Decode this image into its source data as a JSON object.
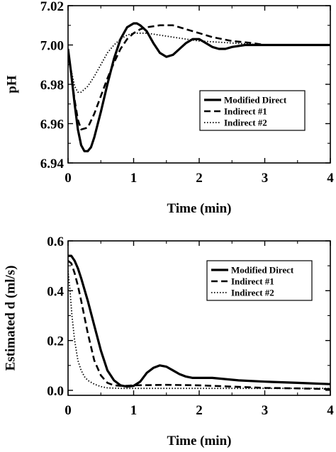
{
  "chart_data": [
    {
      "type": "line",
      "xlabel": "Time (min)",
      "ylabel": "pH",
      "xlim": [
        0,
        4
      ],
      "ylim": [
        6.94,
        7.02
      ],
      "x_ticks": [
        0,
        1,
        2,
        3,
        4
      ],
      "x_tick_labels": [
        "0",
        "1",
        "2",
        "3",
        "4"
      ],
      "y_ticks": [
        6.94,
        6.96,
        6.98,
        7.0,
        7.02
      ],
      "y_tick_labels": [
        "6.94",
        "6.96",
        "6.98",
        "7.00",
        "7.02"
      ],
      "grid": false,
      "legend_position": "center-right",
      "series": [
        {
          "name": "Modified Direct",
          "style": "solid",
          "x": [
            0,
            0.05,
            0.1,
            0.15,
            0.2,
            0.25,
            0.3,
            0.35,
            0.4,
            0.5,
            0.6,
            0.7,
            0.8,
            0.9,
            1.0,
            1.05,
            1.1,
            1.2,
            1.3,
            1.4,
            1.5,
            1.6,
            1.7,
            1.8,
            1.9,
            2.0,
            2.1,
            2.2,
            2.3,
            2.4,
            2.5,
            2.7,
            2.9,
            3.0,
            3.5,
            4.0
          ],
          "values": [
            6.998,
            6.985,
            6.97,
            6.957,
            6.949,
            6.946,
            6.946,
            6.948,
            6.953,
            6.966,
            6.98,
            6.993,
            7.003,
            7.009,
            7.011,
            7.011,
            7.01,
            7.007,
            7.001,
            6.996,
            6.994,
            6.995,
            6.998,
            7.001,
            7.003,
            7.003,
            7.001,
            6.999,
            6.998,
            6.998,
            6.999,
            7.0,
            7.0,
            7.0,
            7.0,
            7.0
          ]
        },
        {
          "name": "Indirect #1",
          "style": "dashed",
          "x": [
            0,
            0.05,
            0.1,
            0.15,
            0.2,
            0.3,
            0.4,
            0.5,
            0.6,
            0.7,
            0.8,
            0.9,
            1.0,
            1.1,
            1.2,
            1.4,
            1.6,
            1.8,
            2.0,
            2.2,
            2.5,
            2.8,
            3.0,
            3.5,
            4.0
          ],
          "values": [
            6.997,
            6.985,
            6.972,
            6.962,
            6.957,
            6.958,
            6.965,
            6.974,
            6.983,
            6.991,
            6.998,
            7.003,
            7.006,
            7.008,
            7.009,
            7.01,
            7.01,
            7.008,
            7.006,
            7.004,
            7.002,
            7.001,
            7.0,
            7.0,
            7.0
          ]
        },
        {
          "name": "Indirect #2",
          "style": "dotted",
          "x": [
            0,
            0.05,
            0.1,
            0.15,
            0.2,
            0.3,
            0.4,
            0.5,
            0.6,
            0.7,
            0.8,
            0.9,
            1.0,
            1.2,
            1.4,
            1.6,
            1.8,
            2.0,
            2.5,
            3.0,
            3.5,
            4.0
          ],
          "values": [
            6.997,
            6.987,
            6.979,
            6.976,
            6.976,
            6.979,
            6.984,
            6.99,
            6.996,
            7.0,
            7.003,
            7.005,
            7.006,
            7.006,
            7.005,
            7.004,
            7.003,
            7.002,
            7.001,
            7.0,
            7.0,
            7.0
          ]
        }
      ]
    },
    {
      "type": "line",
      "xlabel": "Time (min)",
      "ylabel": "Estimated d (ml/s)",
      "xlim": [
        0,
        4
      ],
      "ylim": [
        -0.02,
        0.6
      ],
      "x_ticks": [
        0,
        1,
        2,
        3,
        4
      ],
      "x_tick_labels": [
        "0",
        "1",
        "2",
        "3",
        "4"
      ],
      "y_ticks": [
        0.0,
        0.2,
        0.4,
        0.6
      ],
      "y_tick_labels": [
        "0.0",
        "0.2",
        "0.4",
        "0.6"
      ],
      "grid": false,
      "legend_position": "top-right",
      "series": [
        {
          "name": "Modified Direct",
          "style": "solid",
          "x": [
            0,
            0.05,
            0.1,
            0.15,
            0.2,
            0.3,
            0.4,
            0.5,
            0.6,
            0.7,
            0.8,
            0.9,
            1.0,
            1.1,
            1.2,
            1.3,
            1.4,
            1.5,
            1.6,
            1.7,
            1.8,
            1.9,
            2.0,
            2.2,
            2.4,
            2.6,
            3.0,
            3.5,
            4.0
          ],
          "values": [
            0.54,
            0.54,
            0.52,
            0.49,
            0.45,
            0.36,
            0.26,
            0.16,
            0.08,
            0.04,
            0.02,
            0.015,
            0.018,
            0.035,
            0.07,
            0.09,
            0.1,
            0.095,
            0.08,
            0.065,
            0.055,
            0.05,
            0.05,
            0.05,
            0.045,
            0.04,
            0.035,
            0.03,
            0.025
          ]
        },
        {
          "name": "Indirect #1",
          "style": "dashed",
          "x": [
            0,
            0.05,
            0.1,
            0.15,
            0.2,
            0.3,
            0.4,
            0.5,
            0.6,
            0.7,
            0.8,
            0.9,
            1.0,
            1.5,
            2.0,
            2.5,
            3.0,
            3.5,
            4.0
          ],
          "values": [
            0.52,
            0.51,
            0.47,
            0.42,
            0.36,
            0.23,
            0.12,
            0.06,
            0.03,
            0.02,
            0.018,
            0.018,
            0.02,
            0.022,
            0.02,
            0.015,
            0.01,
            0.008,
            0.005
          ]
        },
        {
          "name": "Indirect #2",
          "style": "dotted",
          "x": [
            0,
            0.03,
            0.06,
            0.1,
            0.15,
            0.2,
            0.25,
            0.3,
            0.4,
            0.5,
            0.6,
            0.8,
            1.0,
            1.5,
            2.0,
            3.0,
            4.0
          ],
          "values": [
            0.48,
            0.4,
            0.3,
            0.2,
            0.12,
            0.08,
            0.055,
            0.04,
            0.025,
            0.015,
            0.01,
            0.008,
            0.008,
            0.008,
            0.008,
            0.008,
            0.008
          ]
        }
      ]
    }
  ]
}
